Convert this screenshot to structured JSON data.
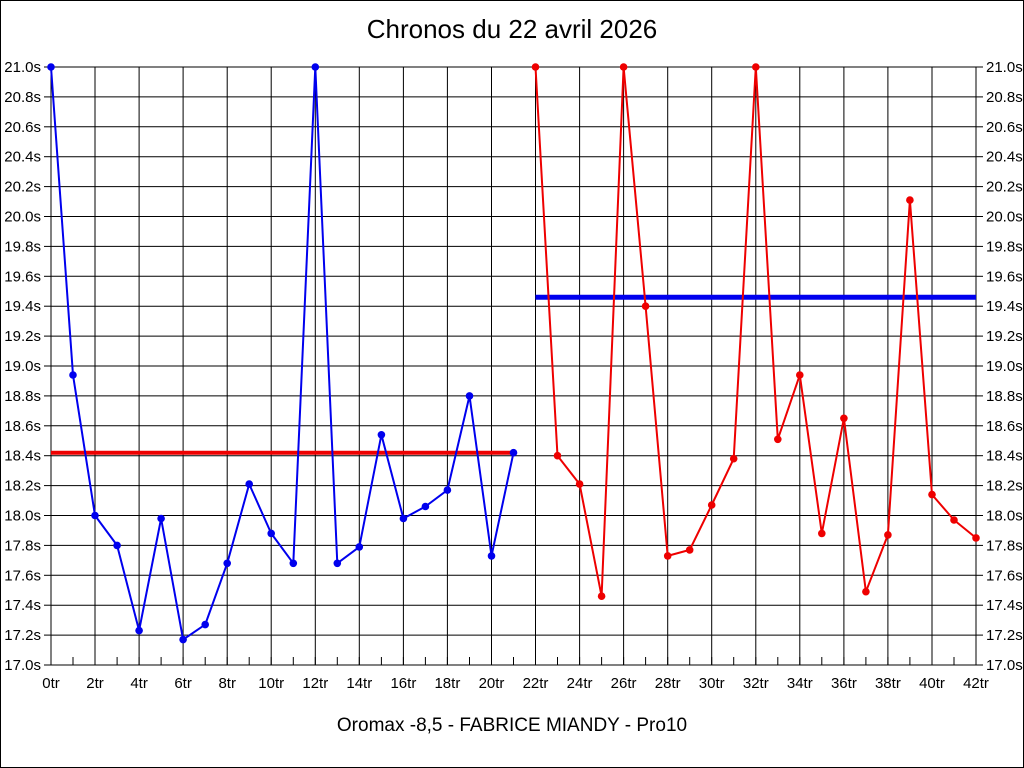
{
  "window": {
    "title": "Chronos du 22 avril 2026",
    "subtitle": "Oromax -8,5 - FABRICE MIANDY - Pro10"
  },
  "chart_data": {
    "type": "line",
    "title": "Chronos du 22 avril 2026",
    "footer": "Oromax -8,5 - FABRICE MIANDY - Pro10",
    "x_unit": "tr",
    "y_unit": "s",
    "xlim": [
      0,
      42
    ],
    "ylim": [
      17.0,
      21.0
    ],
    "y_tick_step": 0.2,
    "x_label_step": 2,
    "x_minor_tick_step": 1,
    "grid": true,
    "grid_color": "#000000",
    "background": "#ffffff",
    "y_tick_labels": [
      "21.0s",
      "20.8s",
      "20.6s",
      "20.4s",
      "20.2s",
      "20.0s",
      "19.8s",
      "19.6s",
      "19.4s",
      "19.2s",
      "19.0s",
      "18.8s",
      "18.6s",
      "18.4s",
      "18.2s",
      "18.0s",
      "17.8s",
      "17.6s",
      "17.4s",
      "17.2s",
      "17.0s"
    ],
    "x_tick_labels": [
      "0tr",
      "2tr",
      "4tr",
      "6tr",
      "8tr",
      "10tr",
      "12tr",
      "14tr",
      "16tr",
      "18tr",
      "20tr",
      "22tr",
      "24tr",
      "26tr",
      "28tr",
      "30tr",
      "32tr",
      "34tr",
      "36tr",
      "38tr",
      "40tr",
      "42tr"
    ],
    "series": [
      {
        "name": "run-1-blue",
        "color": "#0000ee",
        "x_start": 0,
        "values": [
          21.0,
          18.94,
          18.0,
          17.8,
          17.23,
          17.98,
          17.17,
          17.27,
          17.68,
          18.21,
          17.88,
          17.68,
          21.0,
          17.68,
          17.79,
          18.54,
          17.98,
          18.06,
          18.17,
          18.8,
          17.73,
          18.42
        ]
      },
      {
        "name": "run-2-red",
        "color": "#ee0000",
        "x_start": 22,
        "values": [
          21.0,
          18.4,
          18.21,
          17.46,
          21.0,
          19.4,
          17.73,
          17.77,
          18.07,
          18.38,
          21.0,
          18.51,
          18.94,
          17.88,
          18.65,
          17.49,
          17.87,
          20.11,
          18.14,
          17.97,
          17.85
        ]
      }
    ],
    "reference_lines": [
      {
        "name": "average-line-run-1",
        "color": "#ee0000",
        "value": 18.42,
        "x_from": 0,
        "x_to": 21,
        "width": 4
      },
      {
        "name": "average-line-run-2",
        "color": "#0000ee",
        "value": 19.46,
        "x_from": 22,
        "x_to": 42,
        "width": 5
      }
    ]
  }
}
